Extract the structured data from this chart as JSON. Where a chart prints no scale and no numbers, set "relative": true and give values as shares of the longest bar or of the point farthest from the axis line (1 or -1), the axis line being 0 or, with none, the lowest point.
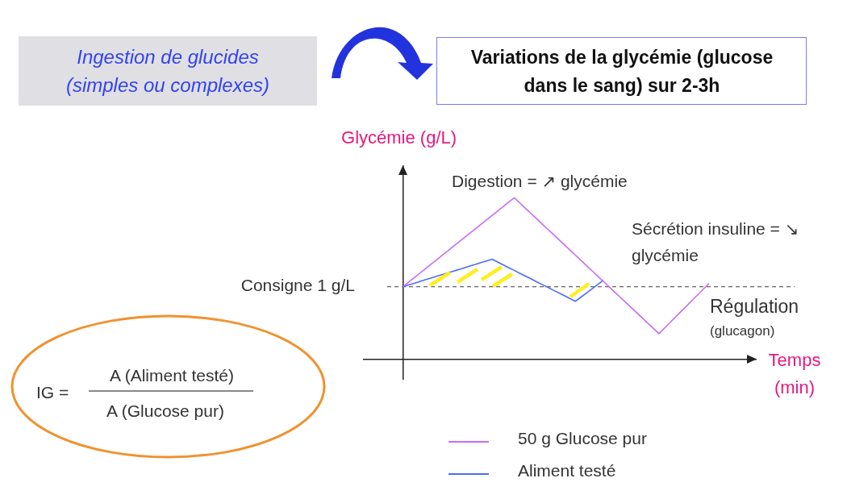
{
  "chart_data": {
    "type": "line",
    "relative": true,
    "xlabel": "Temps (min)",
    "ylabel": "Glycémie (g/L)",
    "marker": "none",
    "line_style": "solid",
    "legend": "bottom",
    "categories": [
      null,
      null,
      null,
      null,
      null,
      null,
      null,
      null,
      null,
      null,
      null,
      null,
      null,
      null,
      null,
      null,
      null,
      null,
      null,
      null,
      null,
      null,
      null,
      null,
      null,
      null,
      null,
      null,
      null,
      null,
      null,
      null,
      null,
      null,
      null,
      null,
      null,
      null,
      null,
      null,
      null,
      null,
      null,
      null,
      null,
      null,
      null,
      null,
      null,
      null,
      null,
      null,
      null,
      null,
      null,
      null
    ],
    "series": [
      {
        "name": "50 g Glucose pur",
        "color": "#c76cf5",
        "values": [
          0.45,
          0.478,
          0.505,
          0.533,
          0.56,
          0.588,
          0.615,
          0.643,
          0.67,
          0.698,
          0.725,
          0.753,
          0.78,
          0.808,
          0.835,
          0.863,
          0.89,
          0.918,
          0.945,
          0.973,
          1,
          0.968,
          0.935,
          0.903,
          0.871,
          0.838,
          0.806,
          0.774,
          0.742,
          0.709,
          0.677,
          0.645,
          0.612,
          0.58,
          0.548,
          0.515,
          0.483,
          0.451,
          0.418,
          0.386,
          0.354,
          0.322,
          0.289,
          0.257,
          0.225,
          0.192,
          0.16,
          0.194,
          0.229,
          0.263,
          0.298,
          0.332,
          0.367,
          0.401,
          0.436,
          0.47
        ]
      },
      {
        "name": "Aliment testé",
        "color": "#4a6cf7",
        "values": [
          0.45,
          0.461,
          0.471,
          0.482,
          0.493,
          0.503,
          0.514,
          0.524,
          0.535,
          0.546,
          0.556,
          0.567,
          0.578,
          0.588,
          0.599,
          0.609,
          0.62,
          0.603,
          0.585,
          0.568,
          0.551,
          0.533,
          0.516,
          0.499,
          0.481,
          0.464,
          0.447,
          0.429,
          0.412,
          0.395,
          0.377,
          0.36,
          0.386,
          0.412,
          0.438,
          0.464,
          0.49,
          null,
          null,
          null,
          null,
          null,
          null,
          null,
          null,
          null,
          null,
          null,
          null,
          null,
          null,
          null,
          null,
          null,
          null,
          null
        ]
      }
    ],
    "ref_lines": [
      {
        "axis": "y",
        "value": 0.45,
        "label": "Consigne 1 g/L",
        "color": "#666666",
        "line_style": "dashed"
      }
    ],
    "annotations": [
      "Ingestion de glucides (simples ou complexes)",
      "Variations de la glycémie (glucose dans le sang) sur 2-3h",
      "Digestion = ↗ glycémie",
      "Sécrétion insuline = ↘ glycémie",
      "Régulation",
      "(glucagon)",
      "IG =",
      "A (Aliment testé)",
      "A (Glucose pur)"
    ]
  }
}
